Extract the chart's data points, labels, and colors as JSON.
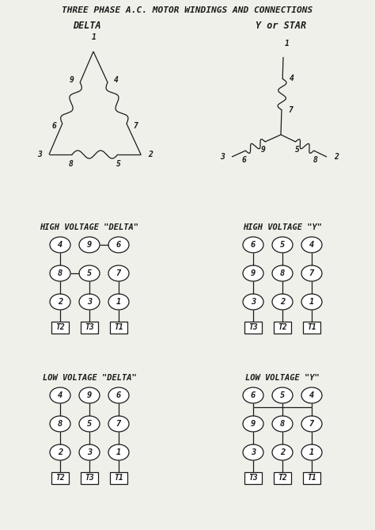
{
  "title": "THREE PHASE A.C. MOTOR WINDINGS AND CONNECTIONS",
  "bg_color": "#f0f0eb",
  "text_color": "#1a1a1a",
  "delta_label": "DELTA",
  "star_label": "Y or STAR",
  "hv_delta_label": "HIGH VOLTAGE \"DELTA\"",
  "hv_y_label": "HIGH VOLTAGE \"Y\"",
  "lv_delta_label": "LOW VOLTAGE \"DELTA\"",
  "lv_y_label": "LOW VOLTAGE \"Y\"",
  "figw": 4.74,
  "figh": 6.69,
  "dpi": 100
}
